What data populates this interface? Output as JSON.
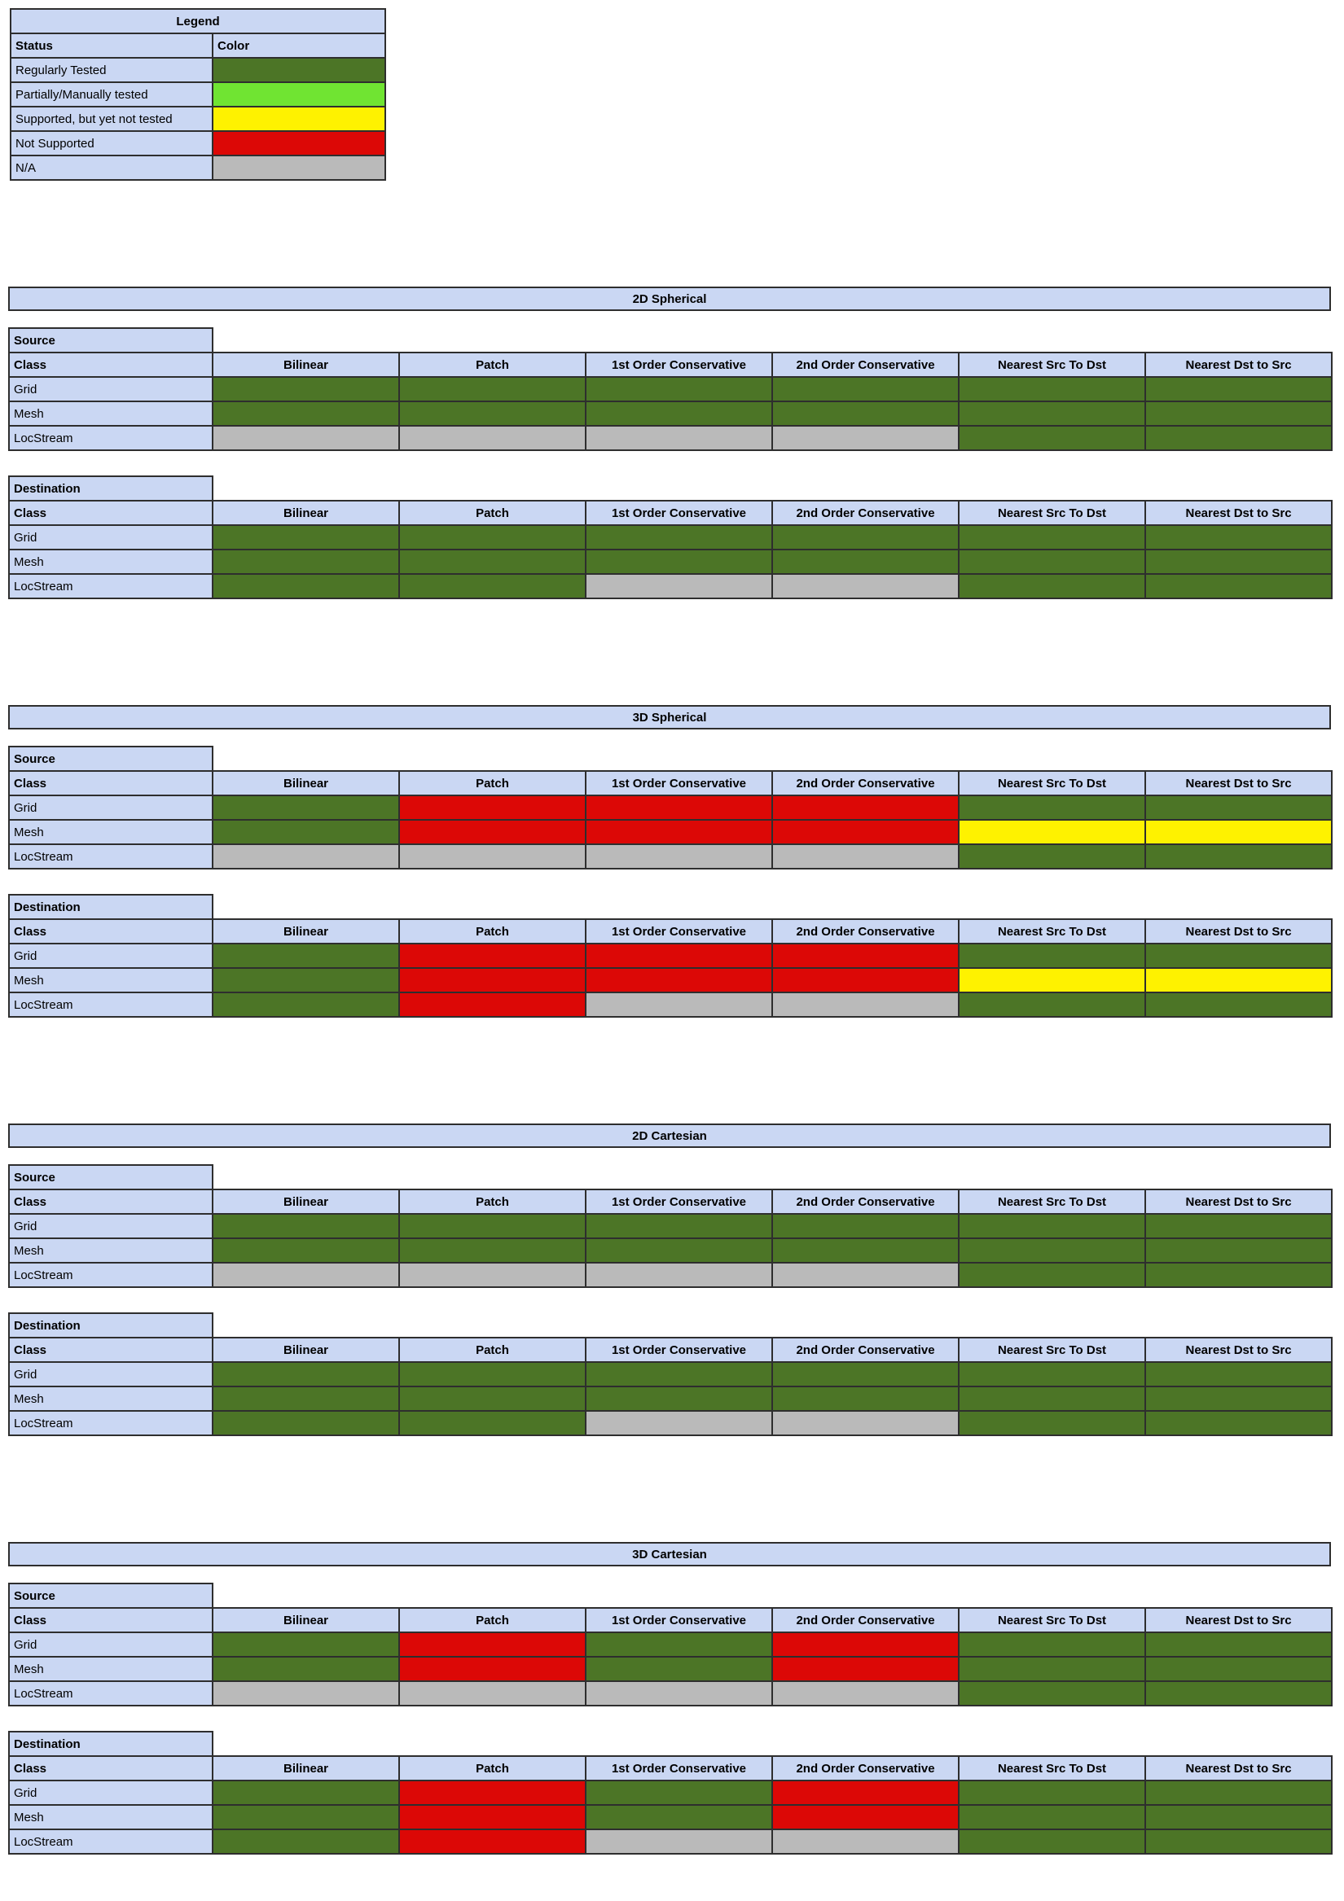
{
  "colors": {
    "header_bg": "#CAD7F3",
    "border": "#2E2E2E",
    "page_bg": "#FFFFFF"
  },
  "status_colors": {
    "regularly-tested": "#4C7526",
    "partially-manually-tested": "#70E432",
    "supported-not-tested": "#FEF200",
    "not-supported": "#DC0806",
    "na": "#BABABA"
  },
  "legend": {
    "title": "Legend",
    "status_header": "Status",
    "color_header": "Color",
    "rows": [
      {
        "label": "Regularly Tested",
        "status": "regularly-tested"
      },
      {
        "label": "Partially/Manually tested",
        "status": "partially-manually-tested"
      },
      {
        "label": "Supported, but yet not tested",
        "status": "supported-not-tested"
      },
      {
        "label": "Not Supported",
        "status": "not-supported"
      },
      {
        "label": "N/A",
        "status": "na"
      }
    ]
  },
  "matrix": {
    "source_label": "Source",
    "destination_label": "Destination",
    "class_header": "Class",
    "method_headers": [
      "Bilinear",
      "Patch",
      "1st Order Conservative",
      "2nd Order Conservative",
      "Nearest Src To Dst",
      "Nearest Dst to Src"
    ],
    "row_labels": [
      "Grid",
      "Mesh",
      "LocStream"
    ]
  },
  "sections": [
    {
      "title": "2D Spherical",
      "source_rows": [
        {
          "label": "Grid",
          "cells": [
            "regularly-tested",
            "regularly-tested",
            "regularly-tested",
            "regularly-tested",
            "regularly-tested",
            "regularly-tested"
          ]
        },
        {
          "label": "Mesh",
          "cells": [
            "regularly-tested",
            "regularly-tested",
            "regularly-tested",
            "regularly-tested",
            "regularly-tested",
            "regularly-tested"
          ]
        },
        {
          "label": "LocStream",
          "cells": [
            "na",
            "na",
            "na",
            "na",
            "regularly-tested",
            "regularly-tested"
          ]
        }
      ],
      "destination_rows": [
        {
          "label": "Grid",
          "cells": [
            "regularly-tested",
            "regularly-tested",
            "regularly-tested",
            "regularly-tested",
            "regularly-tested",
            "regularly-tested"
          ]
        },
        {
          "label": "Mesh",
          "cells": [
            "regularly-tested",
            "regularly-tested",
            "regularly-tested",
            "regularly-tested",
            "regularly-tested",
            "regularly-tested"
          ]
        },
        {
          "label": "LocStream",
          "cells": [
            "regularly-tested",
            "regularly-tested",
            "na",
            "na",
            "regularly-tested",
            "regularly-tested"
          ]
        }
      ]
    },
    {
      "title": "3D Spherical",
      "source_rows": [
        {
          "label": "Grid",
          "cells": [
            "regularly-tested",
            "not-supported",
            "not-supported",
            "not-supported",
            "regularly-tested",
            "regularly-tested"
          ]
        },
        {
          "label": "Mesh",
          "cells": [
            "regularly-tested",
            "not-supported",
            "not-supported",
            "not-supported",
            "supported-not-tested",
            "supported-not-tested"
          ]
        },
        {
          "label": "LocStream",
          "cells": [
            "na",
            "na",
            "na",
            "na",
            "regularly-tested",
            "regularly-tested"
          ]
        }
      ],
      "destination_rows": [
        {
          "label": "Grid",
          "cells": [
            "regularly-tested",
            "not-supported",
            "not-supported",
            "not-supported",
            "regularly-tested",
            "regularly-tested"
          ]
        },
        {
          "label": "Mesh",
          "cells": [
            "regularly-tested",
            "not-supported",
            "not-supported",
            "not-supported",
            "supported-not-tested",
            "supported-not-tested"
          ]
        },
        {
          "label": "LocStream",
          "cells": [
            "regularly-tested",
            "not-supported",
            "na",
            "na",
            "regularly-tested",
            "regularly-tested"
          ]
        }
      ]
    },
    {
      "title": "2D Cartesian",
      "source_rows": [
        {
          "label": "Grid",
          "cells": [
            "regularly-tested",
            "regularly-tested",
            "regularly-tested",
            "regularly-tested",
            "regularly-tested",
            "regularly-tested"
          ]
        },
        {
          "label": "Mesh",
          "cells": [
            "regularly-tested",
            "regularly-tested",
            "regularly-tested",
            "regularly-tested",
            "regularly-tested",
            "regularly-tested"
          ]
        },
        {
          "label": "LocStream",
          "cells": [
            "na",
            "na",
            "na",
            "na",
            "regularly-tested",
            "regularly-tested"
          ]
        }
      ],
      "destination_rows": [
        {
          "label": "Grid",
          "cells": [
            "regularly-tested",
            "regularly-tested",
            "regularly-tested",
            "regularly-tested",
            "regularly-tested",
            "regularly-tested"
          ]
        },
        {
          "label": "Mesh",
          "cells": [
            "regularly-tested",
            "regularly-tested",
            "regularly-tested",
            "regularly-tested",
            "regularly-tested",
            "regularly-tested"
          ]
        },
        {
          "label": "LocStream",
          "cells": [
            "regularly-tested",
            "regularly-tested",
            "na",
            "na",
            "regularly-tested",
            "regularly-tested"
          ]
        }
      ]
    },
    {
      "title": "3D Cartesian",
      "source_rows": [
        {
          "label": "Grid",
          "cells": [
            "regularly-tested",
            "not-supported",
            "regularly-tested",
            "not-supported",
            "regularly-tested",
            "regularly-tested"
          ]
        },
        {
          "label": "Mesh",
          "cells": [
            "regularly-tested",
            "not-supported",
            "regularly-tested",
            "not-supported",
            "regularly-tested",
            "regularly-tested"
          ]
        },
        {
          "label": "LocStream",
          "cells": [
            "na",
            "na",
            "na",
            "na",
            "regularly-tested",
            "regularly-tested"
          ]
        }
      ],
      "destination_rows": [
        {
          "label": "Grid",
          "cells": [
            "regularly-tested",
            "not-supported",
            "regularly-tested",
            "not-supported",
            "regularly-tested",
            "regularly-tested"
          ]
        },
        {
          "label": "Mesh",
          "cells": [
            "regularly-tested",
            "not-supported",
            "regularly-tested",
            "not-supported",
            "regularly-tested",
            "regularly-tested"
          ]
        },
        {
          "label": "LocStream",
          "cells": [
            "regularly-tested",
            "not-supported",
            "na",
            "na",
            "regularly-tested",
            "regularly-tested"
          ]
        }
      ]
    }
  ]
}
